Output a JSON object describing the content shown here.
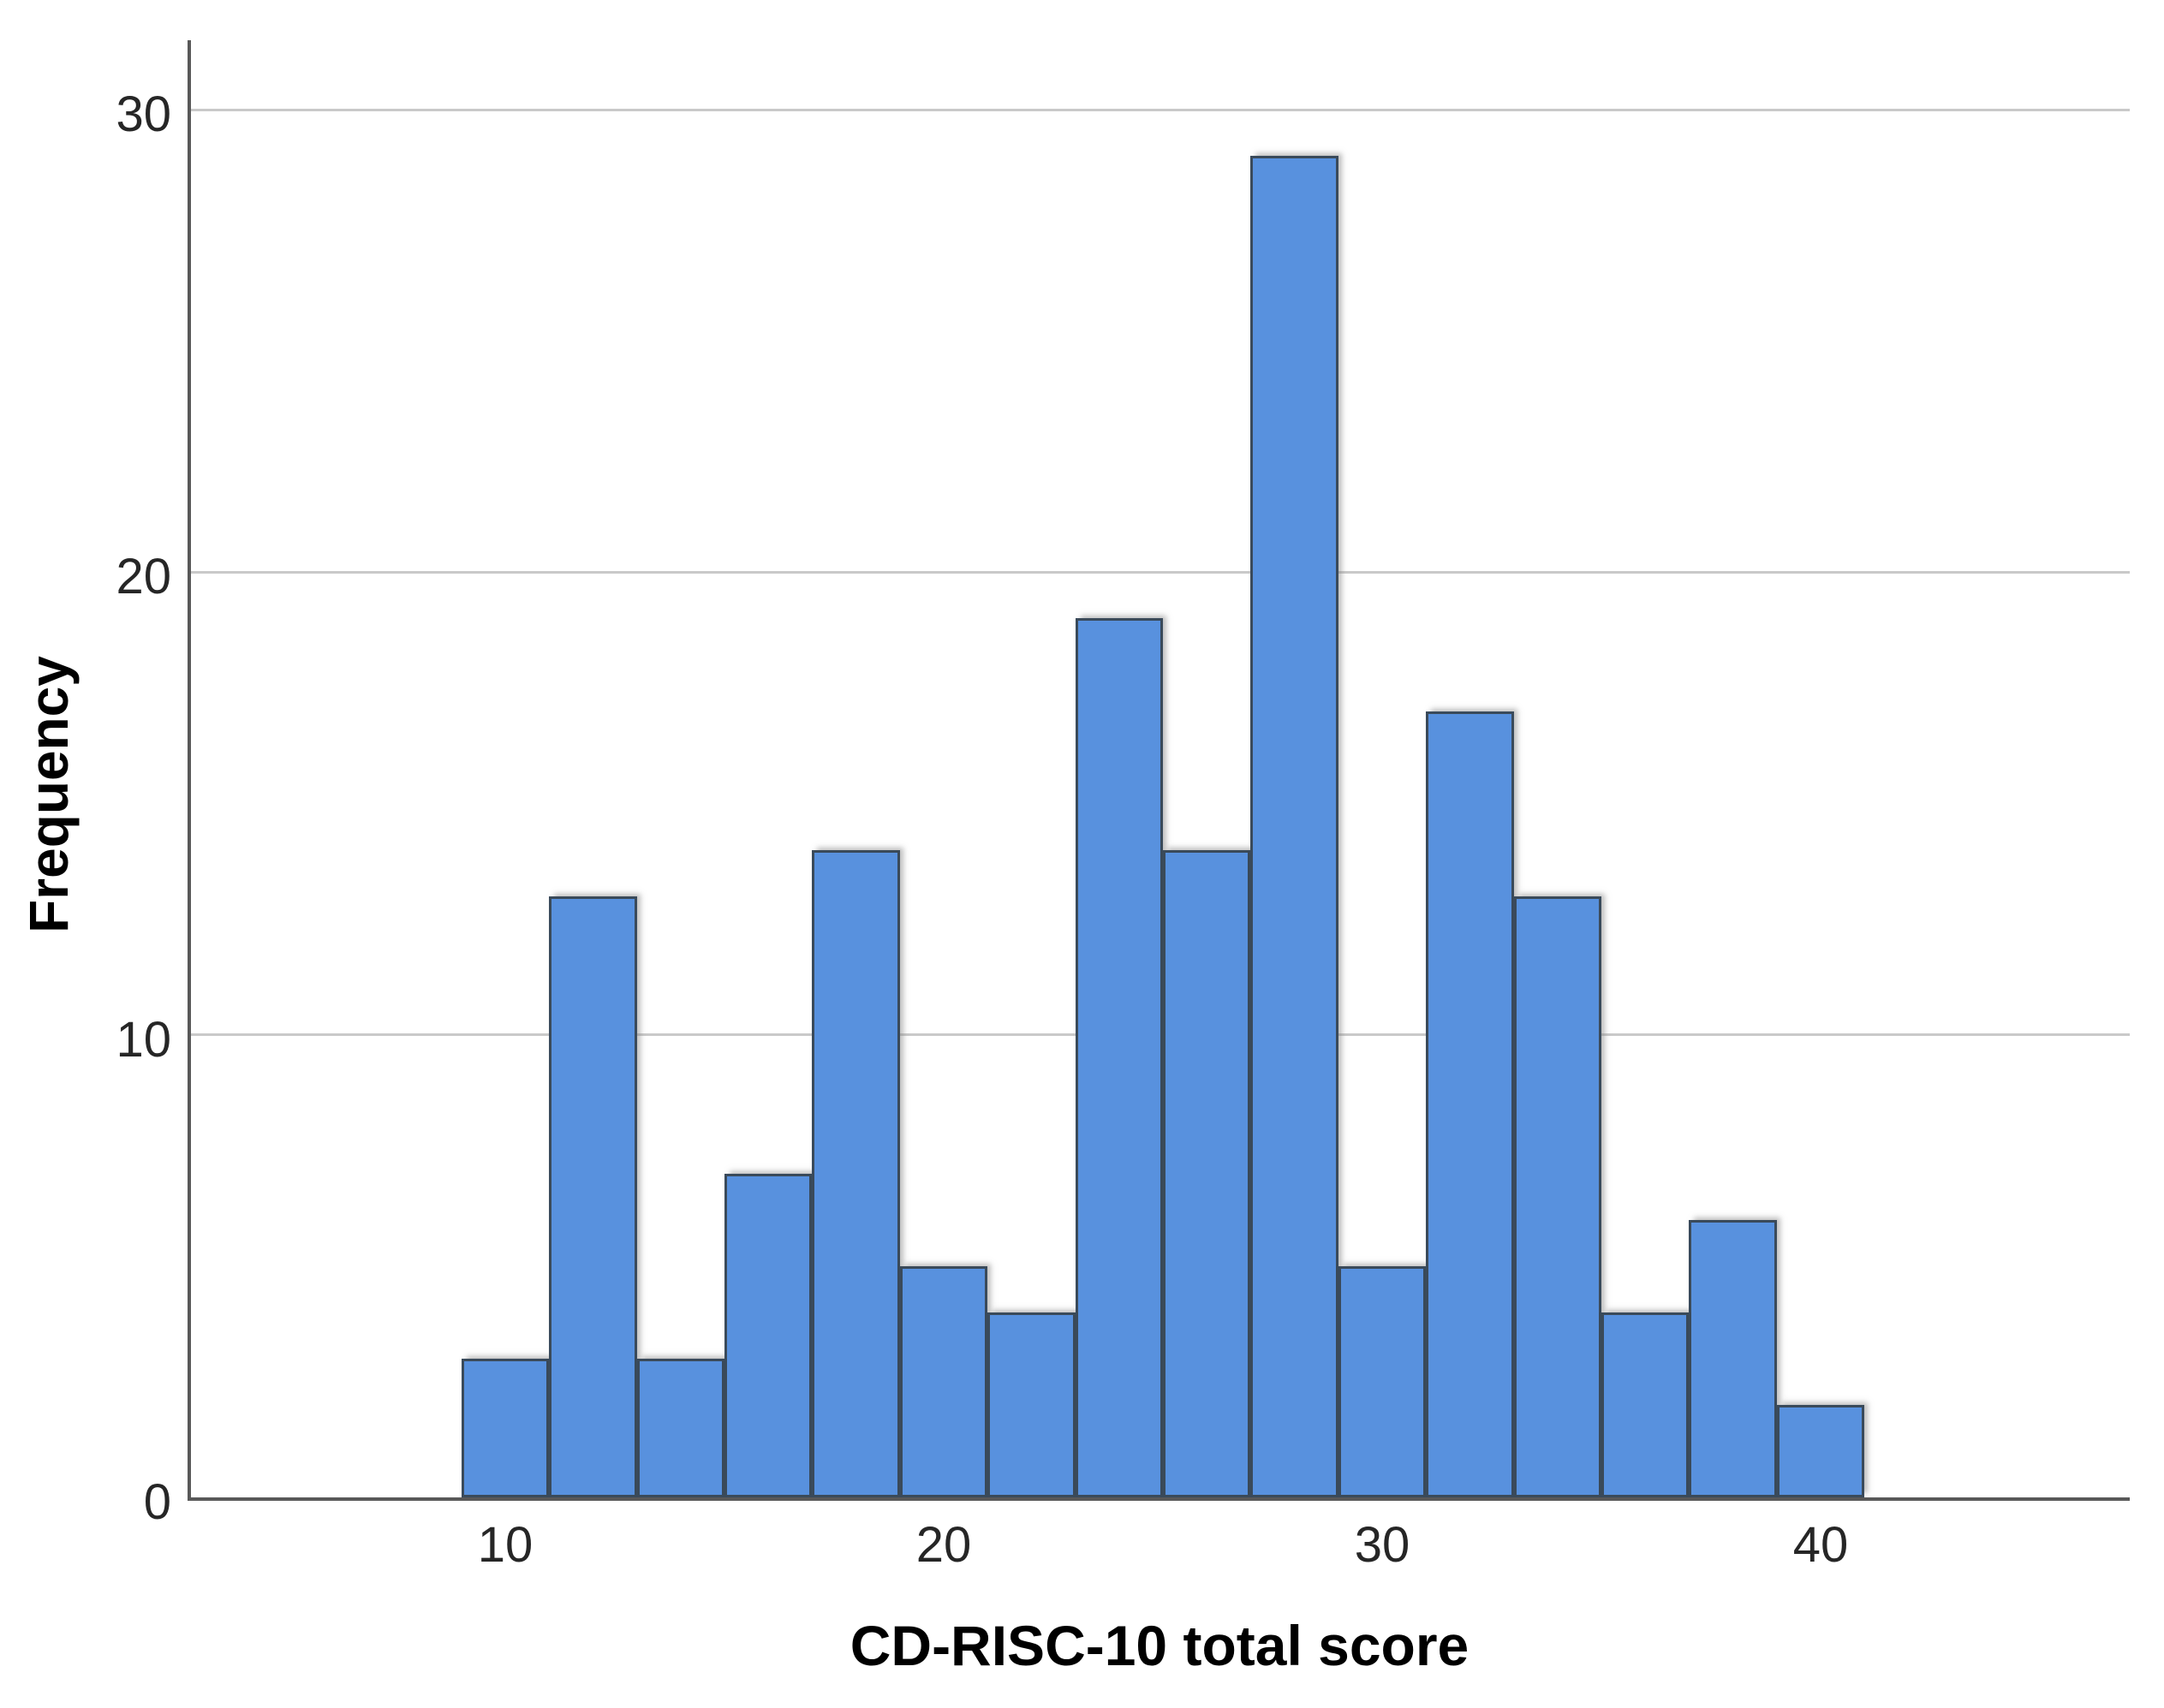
{
  "chart_data": {
    "type": "bar",
    "subtype": "histogram",
    "title": "",
    "xlabel": "CD-RISC-10 total score",
    "ylabel": "Frequency",
    "categories": [
      10,
      12,
      14,
      16,
      18,
      20,
      22,
      24,
      26,
      28,
      30,
      32,
      34,
      36,
      38,
      40
    ],
    "values": [
      3,
      13,
      3,
      7,
      14,
      5,
      4,
      19,
      14,
      29,
      5,
      17,
      13,
      4,
      6,
      2
    ],
    "bin_width": 2,
    "x_ticks": [
      10,
      20,
      30,
      40
    ],
    "y_ticks": [
      0,
      10,
      20,
      30
    ],
    "xlim": [
      3,
      47
    ],
    "ylim": [
      0,
      31.5
    ],
    "grid": "horizontal",
    "legend": "none",
    "colors": {
      "bar_fill": "#5891DE",
      "bar_border": "#3A4A5A",
      "gridline": "#C9C9C9",
      "axis": "#595959",
      "tick_label": "#262626",
      "axis_title": "#000000"
    }
  }
}
